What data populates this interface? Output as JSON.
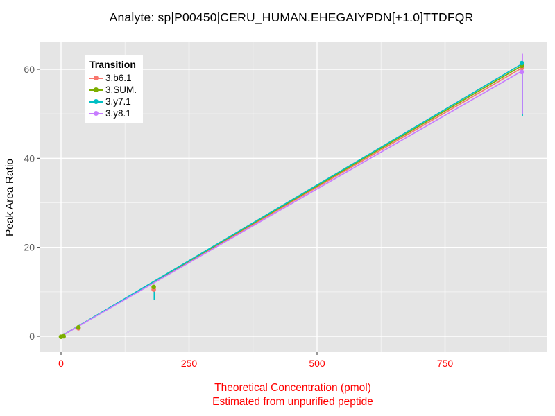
{
  "chart_data": {
    "type": "line",
    "title": "Analyte: sp|P00450|CERU_HUMAN.EHEGAIYPDN[+1.0]TTDFQR",
    "xlabel": "Theoretical Concentration (pmol)",
    "xlabel_sub": "Estimated from unpurified peptide",
    "ylabel": "Peak Area Ratio",
    "legend_title": "Transition",
    "legend_position": "top-left-inside",
    "grid": "white-major-minor-on-gray",
    "panel_bg": "#E5E5E5",
    "axis_colors": {
      "x_tick_labels": "#FF0000",
      "x_title": "#FF0000",
      "y_tick_labels": "#606060",
      "y_title": "#000000"
    },
    "x_ticks": [
      0,
      250,
      500,
      750
    ],
    "x_minor_ticks": [
      125,
      375,
      625,
      875
    ],
    "y_ticks": [
      0,
      20,
      40,
      60
    ],
    "y_minor_ticks": [
      10,
      30,
      50
    ],
    "xlim": [
      -42,
      948
    ],
    "ylim": [
      -3.6,
      66
    ],
    "series": [
      {
        "name": "3.b6.1",
        "color": "#F8766D",
        "line": {
          "x": [
            0,
            900
          ],
          "y": [
            0,
            60.3
          ]
        },
        "points": [
          [
            34,
            1.8
          ],
          [
            181,
            10.5
          ],
          [
            900,
            60.3
          ]
        ],
        "error_bars": []
      },
      {
        "name": "3.SUM.",
        "color": "#7CAE00",
        "line": {
          "x": [
            0,
            900
          ],
          "y": [
            0,
            60.8
          ]
        },
        "points": [
          [
            0,
            -0.1
          ],
          [
            5,
            0.0
          ],
          [
            34,
            2.0
          ],
          [
            181,
            11.1
          ],
          [
            900,
            60.8
          ]
        ],
        "error_bars": []
      },
      {
        "name": "3.y7.1",
        "color": "#00BFC4",
        "line": {
          "x": [
            0,
            900
          ],
          "y": [
            0,
            61.2
          ]
        },
        "points": [
          [
            900,
            61.4
          ]
        ],
        "error_bars": [
          {
            "x": 181,
            "low": 8.2,
            "high": 11.0
          },
          {
            "x": 900,
            "low": 49.5,
            "high": 61.4
          }
        ]
      },
      {
        "name": "3.y8.1",
        "color": "#C77CFF",
        "line": {
          "x": [
            0,
            900
          ],
          "y": [
            0,
            59.6
          ]
        },
        "points": [
          [
            900,
            59.4
          ]
        ],
        "error_bars": [
          {
            "x": 900,
            "low": 50.0,
            "high": 63.5
          }
        ]
      }
    ]
  }
}
